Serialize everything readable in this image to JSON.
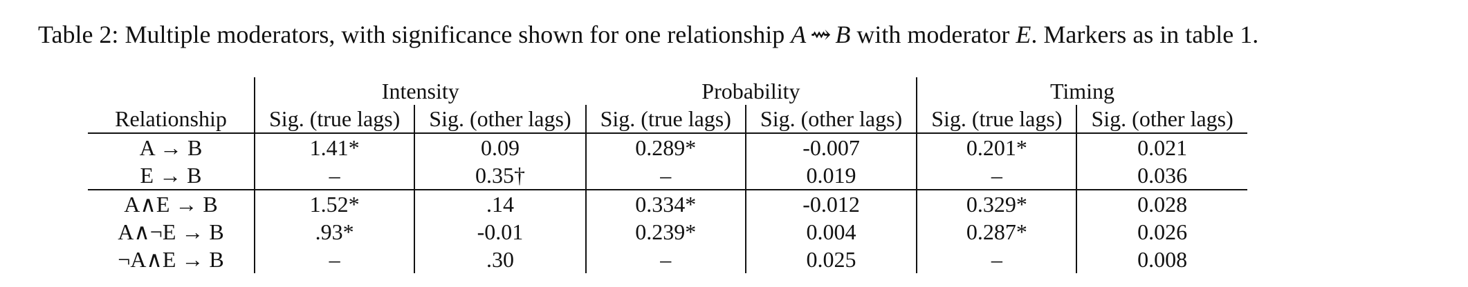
{
  "caption": {
    "prefix": "Table 2: Multiple moderators, with significance shown for one relationship ",
    "var_a": "A",
    "arrow": "⇝",
    "var_b": "B",
    "mid": " with moderator ",
    "var_e": "E",
    "suffix": ". Markers as in table 1."
  },
  "table": {
    "groups": [
      "Intensity",
      "Probability",
      "Timing"
    ],
    "row_header": "Relationship",
    "subheaders": [
      "Sig. (true lags)",
      "Sig. (other lags)",
      "Sig. (true lags)",
      "Sig. (other lags)",
      "Sig. (true lags)",
      "Sig. (other lags)"
    ],
    "rows": [
      {
        "rel": "A → B",
        "cells": [
          "1.41*",
          "0.09",
          "0.289*",
          "-0.007",
          "0.201*",
          "0.021"
        ]
      },
      {
        "rel": "E → B",
        "cells": [
          "–",
          "0.35†",
          "–",
          "0.019",
          "–",
          "0.036"
        ]
      },
      {
        "rel": "A∧E → B",
        "cells": [
          "1.52*",
          ".14",
          "0.334*",
          "-0.012",
          "0.329*",
          "0.028"
        ]
      },
      {
        "rel": "A∧¬E → B",
        "cells": [
          ".93*",
          "-0.01",
          "0.239*",
          "0.004",
          "0.287*",
          "0.026"
        ]
      },
      {
        "rel": "¬A∧E → B",
        "cells": [
          "–",
          ".30",
          "–",
          "0.025",
          "–",
          "0.008"
        ]
      }
    ]
  }
}
